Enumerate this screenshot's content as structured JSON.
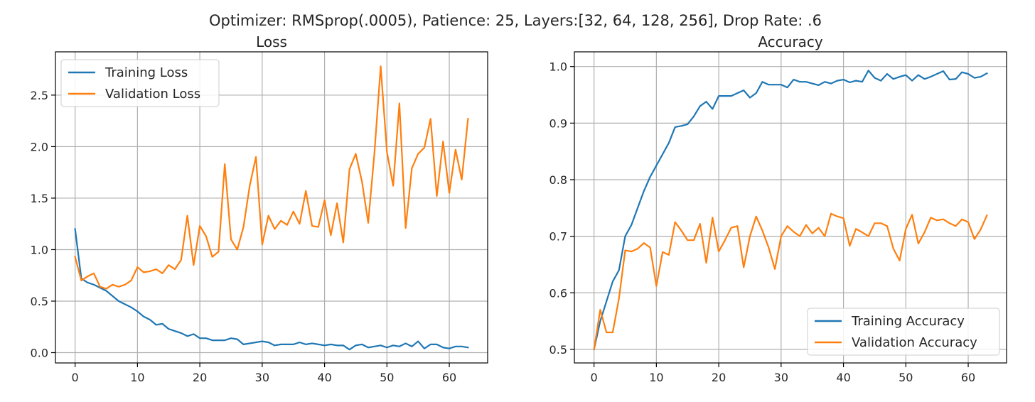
{
  "figure": {
    "suptitle": "Optimizer: RMSprop(.0005), Patience: 25, Layers:[32, 64, 128, 256], Drop Rate: .6"
  },
  "chart_data": [
    {
      "id": "loss",
      "type": "line",
      "title": "Loss",
      "xlabel": "",
      "ylabel": "",
      "xlim": [
        -3.15,
        66.15
      ],
      "ylim": [
        -0.1,
        2.92
      ],
      "xticks": [
        0,
        10,
        20,
        30,
        40,
        50,
        60
      ],
      "xtick_labels": [
        "0",
        "10",
        "20",
        "30",
        "40",
        "50",
        "60"
      ],
      "yticks": [
        0.0,
        0.5,
        1.0,
        1.5,
        2.0,
        2.5
      ],
      "ytick_labels": [
        "0.0",
        "0.5",
        "1.0",
        "1.5",
        "2.0",
        "2.5"
      ],
      "grid": true,
      "legend_position": "top-left",
      "series": [
        {
          "name": "Training Loss",
          "color": "#1f77b4",
          "values": [
            1.2,
            0.72,
            0.68,
            0.66,
            0.63,
            0.6,
            0.55,
            0.5,
            0.47,
            0.44,
            0.4,
            0.35,
            0.32,
            0.27,
            0.28,
            0.23,
            0.21,
            0.19,
            0.16,
            0.18,
            0.14,
            0.14,
            0.12,
            0.12,
            0.12,
            0.14,
            0.13,
            0.08,
            0.09,
            0.1,
            0.11,
            0.1,
            0.07,
            0.08,
            0.08,
            0.08,
            0.1,
            0.08,
            0.09,
            0.08,
            0.07,
            0.08,
            0.07,
            0.07,
            0.03,
            0.07,
            0.08,
            0.05,
            0.06,
            0.07,
            0.05,
            0.07,
            0.06,
            0.09,
            0.06,
            0.11,
            0.04,
            0.08,
            0.08,
            0.05,
            0.04,
            0.06,
            0.06,
            0.05
          ]
        },
        {
          "name": "Validation Loss",
          "color": "#ff7f0e",
          "values": [
            0.93,
            0.7,
            0.74,
            0.77,
            0.64,
            0.62,
            0.66,
            0.64,
            0.66,
            0.7,
            0.83,
            0.78,
            0.79,
            0.81,
            0.77,
            0.85,
            0.81,
            0.9,
            1.33,
            0.85,
            1.23,
            1.13,
            0.93,
            0.98,
            1.83,
            1.1,
            1.0,
            1.22,
            1.62,
            1.9,
            1.05,
            1.33,
            1.2,
            1.28,
            1.24,
            1.37,
            1.25,
            1.57,
            1.23,
            1.22,
            1.48,
            1.14,
            1.45,
            1.07,
            1.78,
            1.93,
            1.66,
            1.26,
            1.94,
            2.78,
            1.95,
            1.62,
            2.42,
            1.21,
            1.79,
            1.93,
            1.99,
            2.27,
            1.52,
            2.05,
            1.55,
            1.97,
            1.68,
            2.27
          ]
        }
      ]
    },
    {
      "id": "accuracy",
      "type": "line",
      "title": "Accuracy",
      "xlabel": "",
      "ylabel": "",
      "xlim": [
        -3.15,
        66.15
      ],
      "ylim": [
        0.476,
        1.026
      ],
      "xticks": [
        0,
        10,
        20,
        30,
        40,
        50,
        60
      ],
      "xtick_labels": [
        "0",
        "10",
        "20",
        "30",
        "40",
        "50",
        "60"
      ],
      "yticks": [
        0.5,
        0.6,
        0.7,
        0.8,
        0.9,
        1.0
      ],
      "ytick_labels": [
        "0.5",
        "0.6",
        "0.7",
        "0.8",
        "0.9",
        "1.0"
      ],
      "grid": true,
      "legend_position": "bottom-right",
      "series": [
        {
          "name": "Training Accuracy",
          "color": "#1f77b4",
          "values": [
            0.5,
            0.55,
            0.585,
            0.62,
            0.64,
            0.7,
            0.72,
            0.75,
            0.78,
            0.805,
            0.825,
            0.845,
            0.865,
            0.893,
            0.895,
            0.898,
            0.912,
            0.93,
            0.938,
            0.925,
            0.948,
            0.948,
            0.948,
            0.953,
            0.958,
            0.945,
            0.953,
            0.973,
            0.968,
            0.968,
            0.968,
            0.963,
            0.977,
            0.973,
            0.973,
            0.97,
            0.967,
            0.973,
            0.97,
            0.975,
            0.977,
            0.972,
            0.975,
            0.973,
            0.993,
            0.98,
            0.975,
            0.987,
            0.978,
            0.982,
            0.985,
            0.975,
            0.985,
            0.978,
            0.982,
            0.987,
            0.992,
            0.977,
            0.978,
            0.99,
            0.987,
            0.98,
            0.982,
            0.988
          ]
        },
        {
          "name": "Validation Accuracy",
          "color": "#ff7f0e",
          "values": [
            0.5,
            0.57,
            0.53,
            0.53,
            0.59,
            0.675,
            0.673,
            0.678,
            0.688,
            0.68,
            0.612,
            0.672,
            0.667,
            0.725,
            0.71,
            0.693,
            0.693,
            0.722,
            0.653,
            0.733,
            0.673,
            0.693,
            0.715,
            0.718,
            0.645,
            0.7,
            0.735,
            0.71,
            0.68,
            0.642,
            0.7,
            0.718,
            0.708,
            0.7,
            0.72,
            0.705,
            0.715,
            0.7,
            0.74,
            0.735,
            0.732,
            0.683,
            0.713,
            0.707,
            0.7,
            0.723,
            0.723,
            0.718,
            0.678,
            0.657,
            0.713,
            0.738,
            0.687,
            0.707,
            0.733,
            0.728,
            0.73,
            0.723,
            0.718,
            0.73,
            0.725,
            0.695,
            0.712,
            0.737
          ]
        }
      ]
    }
  ]
}
